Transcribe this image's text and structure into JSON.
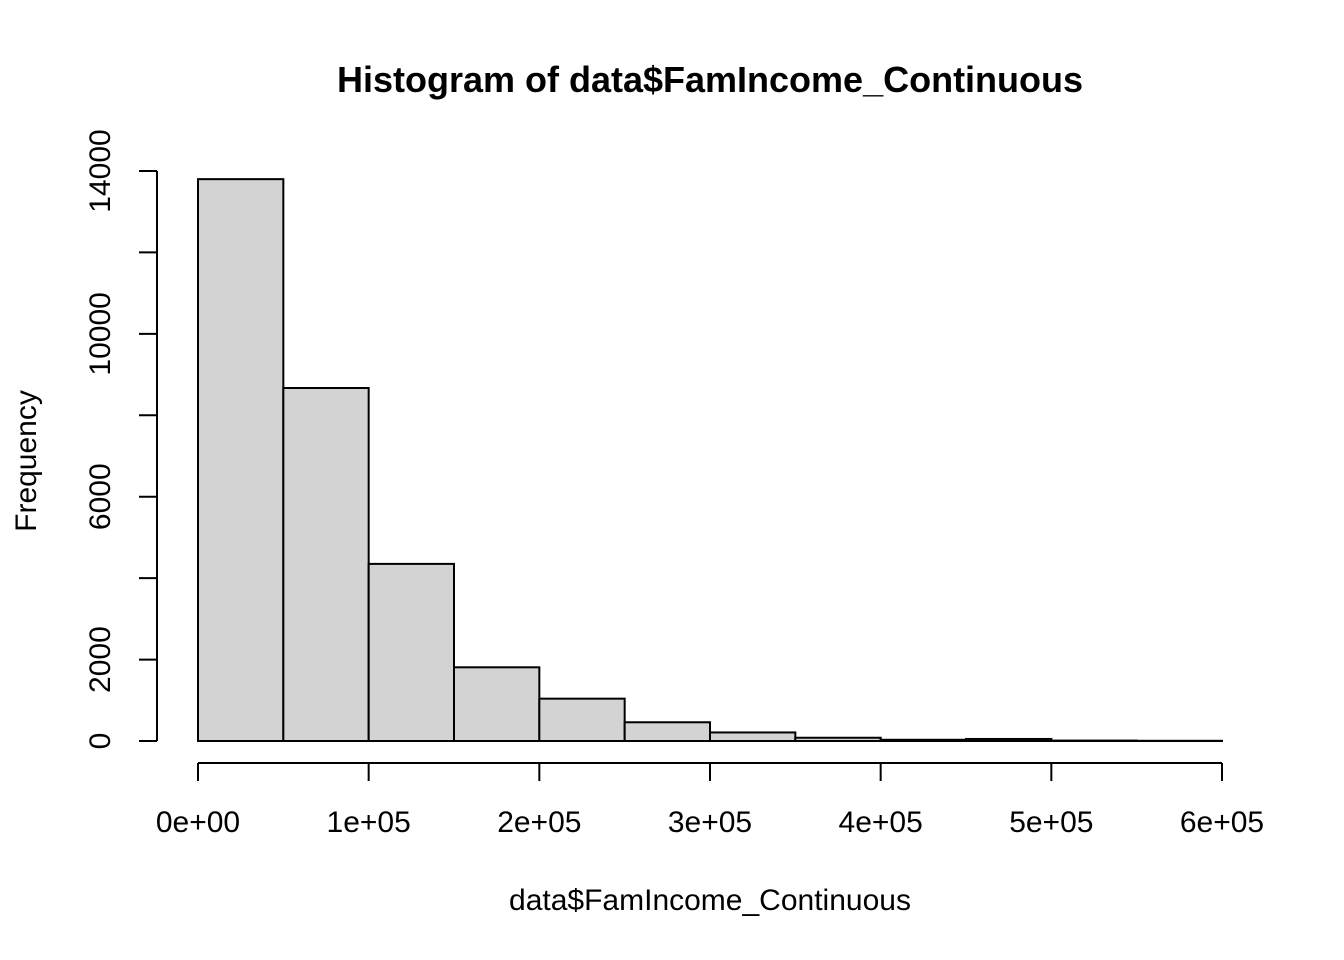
{
  "chart_data": {
    "type": "bar",
    "title": "Histogram of data$FamIncome_Continuous",
    "xlabel": "data$FamIncome_Continuous",
    "ylabel": "Frequency",
    "bin_edges": [
      0,
      50000,
      100000,
      150000,
      200000,
      250000,
      300000,
      350000,
      400000,
      450000,
      500000,
      550000,
      600000
    ],
    "values": [
      13800,
      8670,
      4350,
      1810,
      1040,
      460,
      210,
      80,
      30,
      50,
      10,
      5
    ],
    "xlim": [
      0,
      600000
    ],
    "ylim": [
      0,
      14000
    ],
    "x_ticks": [
      {
        "value": 0,
        "label": "0e+00"
      },
      {
        "value": 100000,
        "label": "1e+05"
      },
      {
        "value": 200000,
        "label": "2e+05"
      },
      {
        "value": 300000,
        "label": "3e+05"
      },
      {
        "value": 400000,
        "label": "4e+05"
      },
      {
        "value": 500000,
        "label": "5e+05"
      },
      {
        "value": 600000,
        "label": "6e+05"
      }
    ],
    "y_ticks": [
      {
        "value": 0,
        "label": "0"
      },
      {
        "value": 2000,
        "label": "2000"
      },
      {
        "value": 4000,
        "label": ""
      },
      {
        "value": 6000,
        "label": "6000"
      },
      {
        "value": 8000,
        "label": ""
      },
      {
        "value": 10000,
        "label": "10000"
      },
      {
        "value": 12000,
        "label": ""
      },
      {
        "value": 14000,
        "label": "14000"
      }
    ],
    "grid": false,
    "bar_color": "#d3d3d3",
    "edge_color": "#000000"
  }
}
